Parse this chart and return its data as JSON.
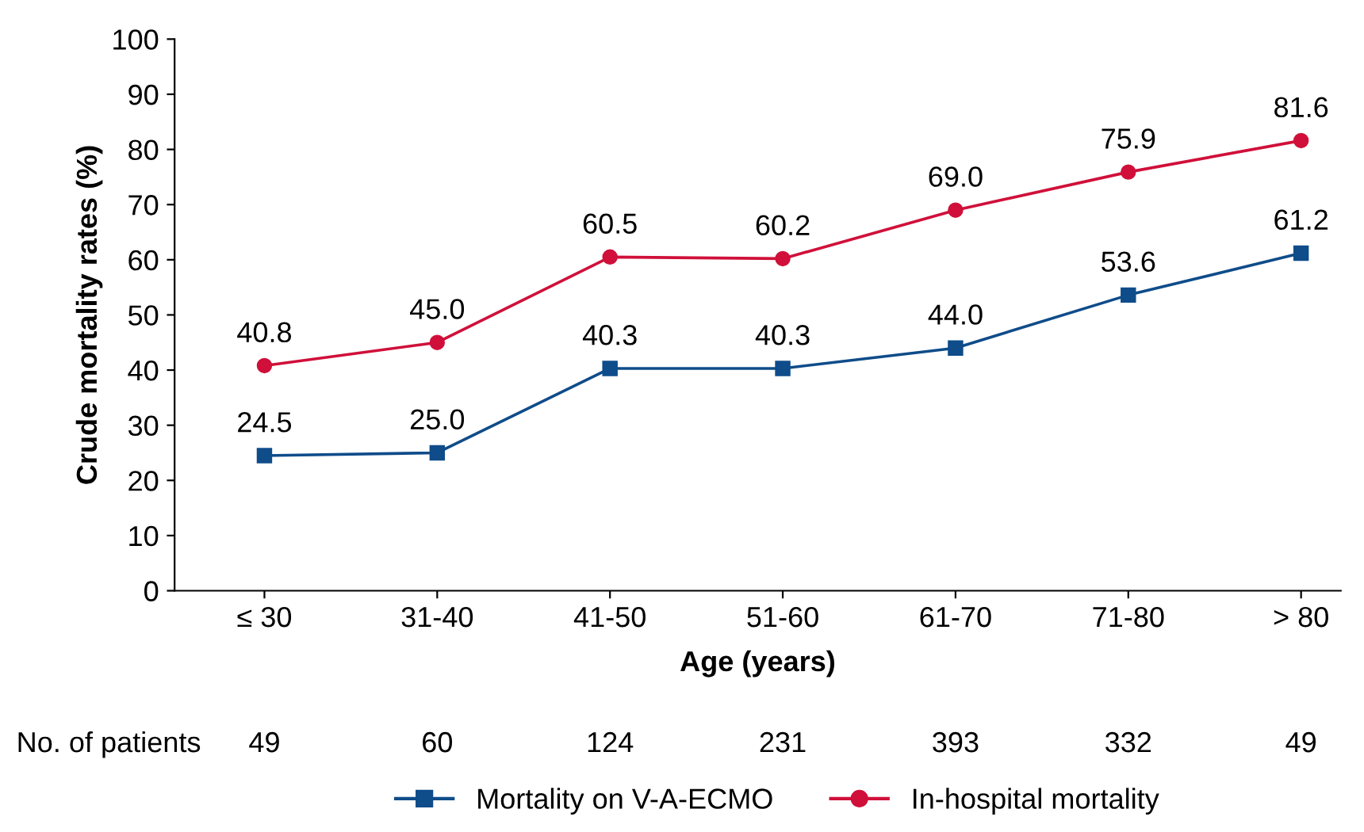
{
  "chart_data": {
    "type": "line",
    "xlabel": "Age (years)",
    "ylabel": "Crude mortality rates (%)",
    "categories": [
      "≤ 30",
      "31-40",
      "41-50",
      "51-60",
      "61-70",
      "71-80",
      "> 80"
    ],
    "series": [
      {
        "name": "Mortality on V-A-ECMO",
        "color": "#0f4c8a",
        "marker": "square",
        "values": [
          24.5,
          25.0,
          40.3,
          40.3,
          44.0,
          53.6,
          61.2
        ],
        "value_labels": [
          "24.5",
          "25.0",
          "40.3",
          "40.3",
          "44.0",
          "53.6",
          "61.2"
        ]
      },
      {
        "name": "In-hospital mortality",
        "color": "#d0103a",
        "marker": "circle",
        "values": [
          40.8,
          45.0,
          60.5,
          60.2,
          69.0,
          75.9,
          81.6
        ],
        "value_labels": [
          "40.8",
          "45.0",
          "60.5",
          "60.2",
          "69.0",
          "75.9",
          "81.6"
        ]
      }
    ],
    "ylim": [
      0,
      100
    ],
    "yticks": [
      0,
      10,
      20,
      30,
      40,
      50,
      60,
      70,
      80,
      90,
      100
    ],
    "legend": "bottom",
    "grid": false,
    "line_style": "solid",
    "annotations": [
      "No. of patients",
      "49",
      "60",
      "124",
      "231",
      "393",
      "332",
      "49"
    ]
  }
}
